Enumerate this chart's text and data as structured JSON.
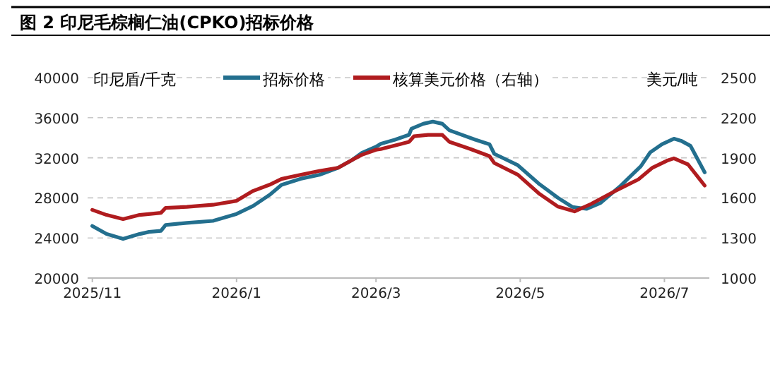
{
  "chart_data": {
    "type": "line",
    "title": "图 2  印尼毛棕榈仁油(CPKO)招标价格",
    "ylabel": "印尼盾/千克",
    "y2label": "美元/吨",
    "xlim": [
      "2025-10-30",
      "2026-07-20"
    ],
    "xticks": [
      {
        "value": "2025-11-01",
        "label": "2025/11"
      },
      {
        "value": "2026-01-01",
        "label": "2026/1"
      },
      {
        "value": "2026-03-01",
        "label": "2026/3"
      },
      {
        "value": "2026-05-01",
        "label": "2026/5"
      },
      {
        "value": "2026-07-01",
        "label": "2026/7"
      }
    ],
    "ylim": [
      20000,
      40000
    ],
    "yticks": [
      20000,
      24000,
      28000,
      32000,
      36000,
      40000
    ],
    "y2lim": [
      1000,
      2500
    ],
    "y2ticks": [
      1000,
      1300,
      1600,
      1900,
      2200,
      2500
    ],
    "grid": "y",
    "legend": "top",
    "line_style": "solid",
    "series": [
      {
        "name": "招标价格",
        "color": "#236f8e",
        "x": [
          "2025-11-01",
          "2025-11-07",
          "2025-11-14",
          "2025-11-21",
          "2025-11-25",
          "2025-11-30",
          "2025-12-02",
          "2025-12-11",
          "2025-12-22",
          "2026-01-01",
          "2026-01-08",
          "2026-01-15",
          "2026-01-20",
          "2026-01-28",
          "2026-02-05",
          "2026-02-13",
          "2026-02-19",
          "2026-02-23",
          "2026-03-01",
          "2026-03-03",
          "2026-03-09",
          "2026-03-15",
          "2026-03-16",
          "2026-03-21",
          "2026-03-25",
          "2026-03-29",
          "2026-04-01",
          "2026-04-12",
          "2026-04-18",
          "2026-04-20",
          "2026-04-30",
          "2026-05-09",
          "2026-05-17",
          "2026-05-23",
          "2026-05-29",
          "2026-06-04",
          "2026-06-12",
          "2026-06-21",
          "2026-06-25",
          "2026-06-30",
          "2026-07-05",
          "2026-07-08",
          "2026-07-12",
          "2026-07-18"
        ],
        "values": [
          25200,
          24400,
          23900,
          24400,
          24600,
          24700,
          25300,
          25500,
          25700,
          26400,
          27200,
          28300,
          29300,
          29900,
          30300,
          31000,
          31800,
          32500,
          33100,
          33400,
          33800,
          34300,
          34900,
          35400,
          35600,
          35400,
          34750,
          33800,
          33350,
          32400,
          31250,
          29400,
          28000,
          27100,
          26900,
          27500,
          29100,
          31150,
          32550,
          33350,
          33900,
          33700,
          33200,
          30550
        ]
      },
      {
        "name": "核算美元价格（右轴）",
        "color": "#b01c1f",
        "axis": "y2",
        "x": [
          "2025-11-01",
          "2025-11-07",
          "2025-11-14",
          "2025-11-21",
          "2025-11-30",
          "2025-12-02",
          "2025-12-11",
          "2025-12-22",
          "2026-01-01",
          "2026-01-08",
          "2026-01-15",
          "2026-01-20",
          "2026-01-28",
          "2026-02-05",
          "2026-02-13",
          "2026-02-19",
          "2026-02-23",
          "2026-03-01",
          "2026-03-03",
          "2026-03-11",
          "2026-03-15",
          "2026-03-17",
          "2026-03-23",
          "2026-03-29",
          "2026-04-01",
          "2026-04-10",
          "2026-04-18",
          "2026-04-20",
          "2026-04-30",
          "2026-05-09",
          "2026-05-17",
          "2026-05-24",
          "2026-05-31",
          "2026-06-10",
          "2026-06-20",
          "2026-06-26",
          "2026-07-02",
          "2026-07-05",
          "2026-07-11",
          "2026-07-18"
        ],
        "values": [
          1510,
          1472,
          1442,
          1472,
          1488,
          1525,
          1532,
          1548,
          1578,
          1652,
          1698,
          1742,
          1772,
          1802,
          1825,
          1885,
          1922,
          1960,
          1966,
          2001,
          2019,
          2061,
          2071,
          2071,
          2019,
          1966,
          1913,
          1861,
          1773,
          1632,
          1534,
          1499,
          1555,
          1650,
          1738,
          1826,
          1878,
          1896,
          1850,
          1692
        ]
      }
    ]
  }
}
